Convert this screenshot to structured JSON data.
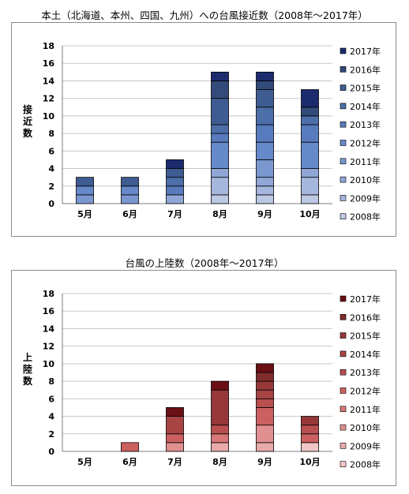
{
  "chart_data": [
    {
      "type": "bar",
      "stacked": true,
      "title": "本土（北海道、本州、四国、九州）への台風接近数（2008年～2017年）",
      "ylabel": "接近数",
      "xlabel": "",
      "ylim": [
        0,
        18
      ],
      "yticks": [
        "0",
        "2",
        "4",
        "6",
        "8",
        "10",
        "12",
        "14",
        "16",
        "18"
      ],
      "grid": true,
      "legend": "right",
      "categories": [
        "5月",
        "6月",
        "7月",
        "8月",
        "9月",
        "10月"
      ],
      "series": [
        {
          "name": "2008年",
          "color": "#bcc8e4",
          "values": [
            0,
            0,
            0,
            1,
            1,
            1
          ]
        },
        {
          "name": "2009年",
          "color": "#a6b7dd",
          "values": [
            0,
            0,
            0,
            2,
            1,
            2
          ]
        },
        {
          "name": "2010年",
          "color": "#90a7d6",
          "values": [
            0,
            0,
            1,
            1,
            1,
            1
          ]
        },
        {
          "name": "2011年",
          "color": "#7b97cf",
          "values": [
            1,
            1,
            0,
            0,
            2,
            0
          ]
        },
        {
          "name": "2012年",
          "color": "#6689c9",
          "values": [
            1,
            1,
            0,
            3,
            2,
            3
          ]
        },
        {
          "name": "2013年",
          "color": "#587bbd",
          "values": [
            0,
            0,
            1,
            1,
            2,
            2
          ]
        },
        {
          "name": "2014年",
          "color": "#4c6ea9",
          "values": [
            0,
            0,
            1,
            1,
            2,
            1
          ]
        },
        {
          "name": "2015年",
          "color": "#3f5c92",
          "values": [
            1,
            1,
            1,
            3,
            2,
            0
          ]
        },
        {
          "name": "2016年",
          "color": "#324b7a",
          "values": [
            0,
            0,
            0,
            2,
            1,
            1
          ]
        },
        {
          "name": "2017年",
          "color": "#1c2b6e",
          "values": [
            0,
            0,
            1,
            1,
            1,
            2
          ]
        }
      ]
    },
    {
      "type": "bar",
      "stacked": true,
      "title": "台風の上陸数（2008年～2017年）",
      "ylabel": "上陸数",
      "xlabel": "",
      "ylim": [
        0,
        18
      ],
      "yticks": [
        "0",
        "2",
        "4",
        "6",
        "8",
        "10",
        "12",
        "14",
        "16",
        "18"
      ],
      "grid": true,
      "legend": "right",
      "categories": [
        "5月",
        "6月",
        "7月",
        "8月",
        "9月",
        "10月"
      ],
      "series": [
        {
          "name": "2008年",
          "color": "#f2c6c6",
          "values": [
            0,
            0,
            0,
            0,
            0,
            1
          ]
        },
        {
          "name": "2009年",
          "color": "#e9aaaa",
          "values": [
            0,
            0,
            0,
            1,
            1,
            0
          ]
        },
        {
          "name": "2010年",
          "color": "#e09090",
          "values": [
            0,
            0,
            1,
            0,
            2,
            0
          ]
        },
        {
          "name": "2011年",
          "color": "#d77777",
          "values": [
            0,
            0,
            0,
            1,
            0,
            0
          ]
        },
        {
          "name": "2012年",
          "color": "#cc6060",
          "values": [
            0,
            1,
            1,
            0,
            2,
            1
          ]
        },
        {
          "name": "2013年",
          "color": "#b94f4f",
          "values": [
            0,
            0,
            0,
            1,
            1,
            1
          ]
        },
        {
          "name": "2014年",
          "color": "#a94444",
          "values": [
            0,
            0,
            2,
            0,
            1,
            0
          ]
        },
        {
          "name": "2015年",
          "color": "#963838",
          "values": [
            0,
            0,
            0,
            4,
            1,
            1
          ]
        },
        {
          "name": "2016年",
          "color": "#7e2c2c",
          "values": [
            0,
            0,
            0,
            0,
            1,
            0
          ]
        },
        {
          "name": "2017年",
          "color": "#6a0f14",
          "values": [
            0,
            0,
            1,
            1,
            1,
            0
          ]
        }
      ]
    }
  ]
}
